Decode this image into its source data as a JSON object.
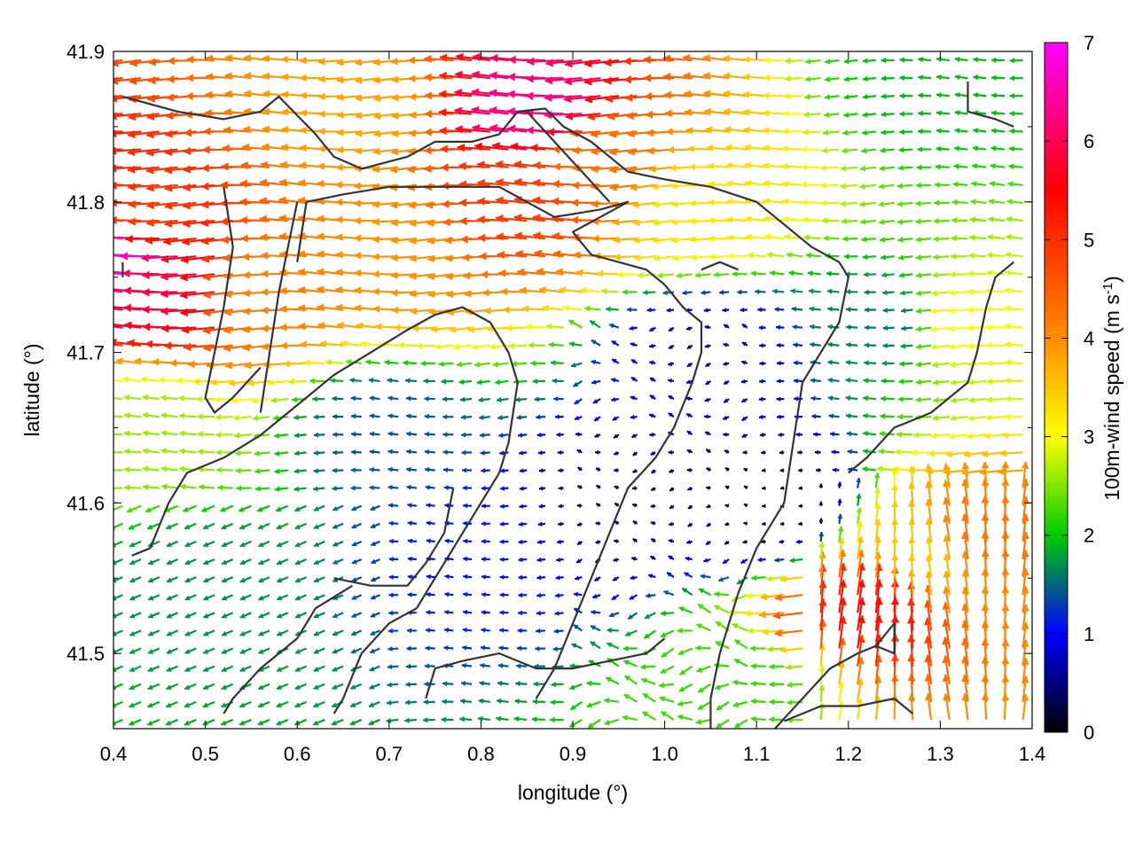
{
  "chart_data": {
    "type": "vector-field",
    "xlabel": "longitude (°)",
    "ylabel": "latitude (°)",
    "xlim": [
      0.4,
      1.4
    ],
    "ylim": [
      41.45,
      41.9
    ],
    "x_ticks": [
      "0.4",
      "0.5",
      "0.6",
      "0.7",
      "0.8",
      "0.9",
      "1.0",
      "1.1",
      "1.2",
      "1.3",
      "1.4"
    ],
    "y_ticks": [
      "41.5",
      "41.6",
      "41.7",
      "41.8",
      "41.9"
    ],
    "grid": false,
    "colorbar": {
      "label_prefix": "100m-wind speed (m s",
      "label_exp": "-1",
      "label_suffix": ")",
      "range": [
        0,
        7
      ],
      "ticks": [
        "0",
        "1",
        "2",
        "3",
        "4",
        "5",
        "6",
        "7"
      ],
      "colormap": [
        "#000000",
        "#0000ff",
        "#00cc00",
        "#ffff00",
        "#ff0000",
        "#ff00ff"
      ]
    },
    "speed_regions": [
      {
        "lon": 0.42,
        "lat": 41.765,
        "speed": 6.8
      },
      {
        "lon": 0.47,
        "lat": 41.74,
        "speed": 6.0
      },
      {
        "lon": 0.45,
        "lat": 41.79,
        "speed": 5.2
      },
      {
        "lon": 0.58,
        "lat": 41.74,
        "speed": 4.4
      },
      {
        "lon": 0.72,
        "lat": 41.77,
        "speed": 4.2
      },
      {
        "lon": 0.86,
        "lat": 41.8,
        "speed": 5.2
      },
      {
        "lon": 0.88,
        "lat": 41.86,
        "speed": 6.4
      },
      {
        "lon": 0.95,
        "lat": 41.83,
        "speed": 4.6
      },
      {
        "lon": 1.05,
        "lat": 41.8,
        "speed": 3.3
      },
      {
        "lon": 0.68,
        "lat": 41.86,
        "speed": 4.0
      },
      {
        "lon": 0.7,
        "lat": 41.65,
        "speed": 1.4
      },
      {
        "lon": 0.8,
        "lat": 41.57,
        "speed": 1.1
      },
      {
        "lon": 0.95,
        "lat": 41.6,
        "speed": 0.4
      },
      {
        "lon": 1.05,
        "lat": 41.7,
        "speed": 0.6
      },
      {
        "lon": 1.12,
        "lat": 41.6,
        "speed": 0.2
      },
      {
        "lon": 1.25,
        "lat": 41.72,
        "speed": 1.6
      },
      {
        "lon": 1.33,
        "lat": 41.72,
        "speed": 3.0
      },
      {
        "lon": 1.22,
        "lat": 41.52,
        "speed": 5.6
      },
      {
        "lon": 1.34,
        "lat": 41.57,
        "speed": 4.6
      },
      {
        "lon": 1.28,
        "lat": 41.56,
        "speed": 3.6
      },
      {
        "lon": 0.5,
        "lat": 41.55,
        "speed": 1.7
      },
      {
        "lon": 0.45,
        "lat": 41.65,
        "speed": 2.6
      },
      {
        "lon": 1.1,
        "lat": 41.48,
        "speed": 2.2
      },
      {
        "lon": 1.3,
        "lat": 41.88,
        "speed": 1.9
      }
    ],
    "contours": [
      [
        [
          0.41,
          41.87
        ],
        [
          0.47,
          41.86
        ],
        [
          0.52,
          41.855
        ],
        [
          0.56,
          41.86
        ],
        [
          0.58,
          41.87
        ],
        [
          0.62,
          41.845
        ],
        [
          0.64,
          41.83
        ],
        [
          0.67,
          41.822
        ],
        [
          0.72,
          41.83
        ],
        [
          0.75,
          41.84
        ],
        [
          0.79,
          41.84
        ],
        [
          0.82,
          41.845
        ],
        [
          0.84,
          41.86
        ],
        [
          0.87,
          41.862
        ],
        [
          0.89,
          41.85
        ],
        [
          0.92,
          41.84
        ],
        [
          0.96,
          41.82
        ],
        [
          1.0,
          41.815
        ],
        [
          1.05,
          41.81
        ],
        [
          1.1,
          41.8
        ],
        [
          1.13,
          41.785
        ],
        [
          1.16,
          41.77
        ],
        [
          1.19,
          41.76
        ],
        [
          1.2,
          41.75
        ],
        [
          1.19,
          41.72
        ],
        [
          1.17,
          41.7
        ],
        [
          1.15,
          41.68
        ],
        [
          1.14,
          41.64
        ],
        [
          1.13,
          41.6
        ],
        [
          1.1,
          41.57
        ],
        [
          1.08,
          41.54
        ],
        [
          1.06,
          41.5
        ],
        [
          1.05,
          41.47
        ],
        [
          1.05,
          41.45
        ]
      ],
      [
        [
          0.6,
          41.76
        ],
        [
          0.61,
          41.8
        ],
        [
          0.65,
          41.805
        ],
        [
          0.7,
          41.81
        ],
        [
          0.76,
          41.81
        ],
        [
          0.82,
          41.81
        ],
        [
          0.85,
          41.8
        ],
        [
          0.88,
          41.79
        ],
        [
          0.93,
          41.795
        ],
        [
          0.96,
          41.8
        ],
        [
          0.93,
          41.79
        ],
        [
          0.9,
          41.78
        ],
        [
          0.92,
          41.765
        ],
        [
          0.95,
          41.76
        ],
        [
          0.98,
          41.755
        ],
        [
          1.0,
          41.745
        ],
        [
          1.02,
          41.73
        ],
        [
          1.04,
          41.72
        ],
        [
          1.04,
          41.7
        ],
        [
          1.03,
          41.68
        ],
        [
          1.01,
          41.65
        ],
        [
          0.99,
          41.63
        ],
        [
          0.96,
          41.61
        ],
        [
          0.94,
          41.58
        ],
        [
          0.92,
          41.55
        ],
        [
          0.9,
          41.52
        ],
        [
          0.88,
          41.49
        ],
        [
          0.86,
          41.47
        ]
      ],
      [
        [
          0.56,
          41.66
        ],
        [
          0.57,
          41.7
        ],
        [
          0.58,
          41.74
        ],
        [
          0.59,
          41.77
        ],
        [
          0.6,
          41.8
        ]
      ],
      [
        [
          0.52,
          41.81
        ],
        [
          0.53,
          41.77
        ],
        [
          0.52,
          41.73
        ],
        [
          0.51,
          41.7
        ],
        [
          0.5,
          41.67
        ],
        [
          0.51,
          41.66
        ],
        [
          0.53,
          41.67
        ],
        [
          0.56,
          41.69
        ]
      ],
      [
        [
          0.42,
          41.565
        ],
        [
          0.44,
          41.57
        ],
        [
          0.46,
          41.6
        ],
        [
          0.48,
          41.62
        ],
        [
          0.52,
          41.63
        ],
        [
          0.56,
          41.645
        ],
        [
          0.6,
          41.665
        ],
        [
          0.64,
          41.685
        ],
        [
          0.68,
          41.7
        ],
        [
          0.72,
          41.715
        ],
        [
          0.75,
          41.725
        ],
        [
          0.78,
          41.73
        ],
        [
          0.81,
          41.72
        ],
        [
          0.83,
          41.7
        ],
        [
          0.84,
          41.68
        ],
        [
          0.83,
          41.64
        ],
        [
          0.82,
          41.62
        ],
        [
          0.8,
          41.6
        ],
        [
          0.78,
          41.58
        ],
        [
          0.75,
          41.55
        ],
        [
          0.73,
          41.53
        ],
        [
          0.7,
          41.52
        ],
        [
          0.67,
          41.5
        ],
        [
          0.65,
          41.47
        ],
        [
          0.64,
          41.46
        ]
      ],
      [
        [
          0.64,
          41.55
        ],
        [
          0.68,
          41.545
        ],
        [
          0.72,
          41.545
        ],
        [
          0.74,
          41.56
        ],
        [
          0.76,
          41.58
        ],
        [
          0.77,
          41.61
        ]
      ],
      [
        [
          0.66,
          41.545
        ],
        [
          0.62,
          41.53
        ],
        [
          0.6,
          41.51
        ],
        [
          0.56,
          41.49
        ],
        [
          0.53,
          41.47
        ],
        [
          0.52,
          41.46
        ]
      ],
      [
        [
          0.74,
          41.47
        ],
        [
          0.75,
          41.49
        ],
        [
          0.78,
          41.495
        ],
        [
          0.82,
          41.5
        ],
        [
          0.86,
          41.49
        ],
        [
          0.9,
          41.49
        ],
        [
          0.94,
          41.495
        ],
        [
          0.98,
          41.5
        ],
        [
          1.0,
          41.51
        ]
      ],
      [
        [
          1.12,
          41.45
        ],
        [
          1.15,
          41.47
        ],
        [
          1.18,
          41.49
        ],
        [
          1.21,
          41.5
        ],
        [
          1.23,
          41.505
        ],
        [
          1.25,
          41.52
        ],
        [
          1.25,
          41.5
        ],
        [
          1.23,
          41.505
        ]
      ],
      [
        [
          1.13,
          41.455
        ],
        [
          1.17,
          41.465
        ],
        [
          1.21,
          41.465
        ],
        [
          1.25,
          41.47
        ],
        [
          1.27,
          41.46
        ]
      ],
      [
        [
          1.2,
          41.62
        ],
        [
          1.22,
          41.63
        ],
        [
          1.25,
          41.65
        ],
        [
          1.27,
          41.655
        ],
        [
          1.29,
          41.66
        ],
        [
          1.31,
          41.67
        ],
        [
          1.33,
          41.68
        ],
        [
          1.34,
          41.7
        ],
        [
          1.35,
          41.73
        ],
        [
          1.36,
          41.75
        ],
        [
          1.38,
          41.76
        ]
      ],
      [
        [
          1.33,
          41.88
        ],
        [
          1.33,
          41.86
        ],
        [
          1.36,
          41.855
        ],
        [
          1.38,
          41.85
        ]
      ],
      [
        [
          1.04,
          41.755
        ],
        [
          1.06,
          41.76
        ],
        [
          1.08,
          41.755
        ]
      ],
      [
        [
          0.41,
          41.76
        ],
        [
          0.41,
          41.75
        ]
      ],
      [
        [
          0.85,
          41.86
        ],
        [
          0.88,
          41.84
        ],
        [
          0.91,
          41.82
        ],
        [
          0.94,
          41.8
        ]
      ]
    ]
  }
}
